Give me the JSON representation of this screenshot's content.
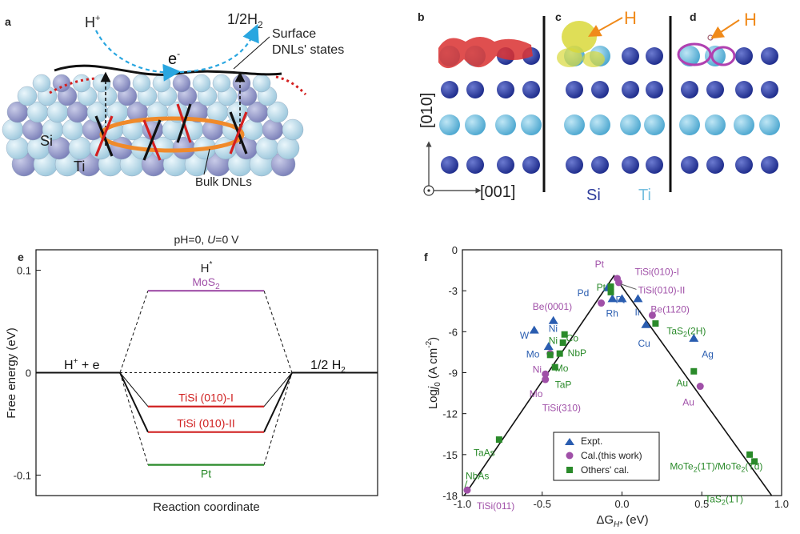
{
  "panel_labels": {
    "a": "a",
    "b": "b",
    "c": "c",
    "d": "d",
    "e": "e",
    "f": "f"
  },
  "panel_a": {
    "h_plus": "H",
    "h_plus_sup": "+",
    "h2_prefix": "1/2H",
    "h2_sub": "2",
    "electron": "e",
    "electron_sup": "-",
    "surface_line1": "Surface",
    "surface_line2": "DNLs' states",
    "si": "Si",
    "ti": "Ti",
    "bulk": "Bulk DNLs"
  },
  "panel_bcd": {
    "axis_vertical": "[010]",
    "axis_horizontal": "[001]",
    "h_label_c": "H",
    "h_label_d": "H",
    "legend_si": "Si",
    "legend_ti": "Ti",
    "colors": {
      "si": "#2b3a9a",
      "ti": "#79c0e0",
      "charge_red": "#d93030",
      "charge_yellow": "#d9d83a",
      "charge_magenta": "#b040b0",
      "arrow": "#f08a1a"
    }
  },
  "panel_e": {
    "title_pre": "pH=0, ",
    "title_u": "U",
    "title_post": "=0 V",
    "h_star": "H",
    "h_star_sup": "*",
    "left_state": "H",
    "left_state_sup": "+",
    "left_state_tail": " + e",
    "right_state_pre": "1/2 H",
    "right_state_sub": "2",
    "ylabel": "Free energy (eV)",
    "xlabel": "Reaction coordinate",
    "yticks": [
      "0.1",
      "0",
      "-0.1"
    ],
    "ylim": [
      -0.12,
      0.12
    ],
    "levels": [
      {
        "name_pre": "MoS",
        "name_sub": "2",
        "name_post": "",
        "value": 0.08,
        "color": "#a050a8"
      },
      {
        "name_pre": "TiSi (010)-I",
        "name_sub": "",
        "name_post": "",
        "value": -0.033,
        "color": "#d02020"
      },
      {
        "name_pre": "TiSi (010)-II",
        "name_sub": "",
        "name_post": "",
        "value": -0.058,
        "color": "#d02020"
      },
      {
        "name_pre": "Pt",
        "name_sub": "",
        "name_post": "",
        "value": -0.09,
        "color": "#2a8a2a"
      }
    ]
  },
  "chart_data": {
    "type": "scatter",
    "xlabel_pre": "ΔG",
    "xlabel_sub": "H*",
    "xlabel_post": " (eV)",
    "ylabel_pre": "Log",
    "ylabel_i": "j",
    "ylabel_sub": "0",
    "ylabel_post": " (A cm",
    "ylabel_sup": "-2",
    "ylabel_end": ")",
    "xlim": [
      -1.0,
      1.0
    ],
    "ylim": [
      -18,
      0
    ],
    "xticks": [
      {
        "v": -1.0,
        "t": "-1.0"
      },
      {
        "v": -0.5,
        "t": "-0.5"
      },
      {
        "v": 0.0,
        "t": "0.0"
      },
      {
        "v": 0.5,
        "t": "0.5"
      },
      {
        "v": 1.0,
        "t": "1.0"
      }
    ],
    "yticks": [
      {
        "v": 0,
        "t": "0"
      },
      {
        "v": -3,
        "t": "-3"
      },
      {
        "v": -6,
        "t": "-6"
      },
      {
        "v": -9,
        "t": "-9"
      },
      {
        "v": -12,
        "t": "-12"
      },
      {
        "v": -15,
        "t": "-15"
      },
      {
        "v": -18,
        "t": "-18"
      }
    ],
    "volcano": [
      [
        -1.0,
        -18.2
      ],
      [
        -0.05,
        -1.9
      ],
      [
        0.95,
        -18.2
      ]
    ],
    "legend": [
      "Expt.",
      "Cal.(this work)",
      "Others' cal."
    ],
    "series": [
      {
        "name": "Expt.",
        "color": "#2a5db0",
        "marker": "triangle",
        "points": [
          [
            -0.55,
            -5.9
          ],
          [
            -0.43,
            -5.2
          ],
          [
            -0.46,
            -7.1
          ],
          [
            -0.09,
            -2.8
          ],
          [
            -0.06,
            -3.6
          ],
          [
            0.0,
            -3.6
          ],
          [
            0.1,
            -3.6
          ],
          [
            0.15,
            -5.5
          ],
          [
            0.45,
            -6.5
          ]
        ]
      },
      {
        "name": "Cal.(this work)",
        "color": "#a050a8",
        "marker": "circle",
        "points": [
          [
            -0.03,
            -2.1
          ],
          [
            -0.02,
            -2.4
          ],
          [
            -0.13,
            -3.9
          ],
          [
            -0.45,
            -7.6
          ],
          [
            -0.48,
            -9.1
          ],
          [
            -0.48,
            -9.5
          ],
          [
            -0.97,
            -17.6
          ],
          [
            0.19,
            -4.8
          ],
          [
            0.49,
            -10.0
          ]
        ]
      },
      {
        "name": "Others' cal.",
        "color": "#2a8a2a",
        "marker": "square",
        "points": [
          [
            -0.07,
            -2.7
          ],
          [
            -0.07,
            -3.1
          ],
          [
            -0.36,
            -6.2
          ],
          [
            -0.37,
            -6.8
          ],
          [
            -0.39,
            -7.6
          ],
          [
            -0.45,
            -7.7
          ],
          [
            -0.42,
            -8.6
          ],
          [
            -0.77,
            -13.9
          ],
          [
            0.21,
            -5.4
          ],
          [
            0.45,
            -8.9
          ],
          [
            0.8,
            -15.0
          ],
          [
            0.83,
            -15.5
          ]
        ]
      }
    ],
    "labels": [
      {
        "text": "Pt",
        "x": -0.17,
        "y": -1.3,
        "color": "#a050a8",
        "anchor": "start"
      },
      {
        "text": "TiSi(010)-I",
        "x": 0.08,
        "y": -1.85,
        "color": "#a050a8",
        "anchor": "start"
      },
      {
        "text": "TiSi(010)-II",
        "x": 0.1,
        "y": -3.2,
        "color": "#a050a8",
        "anchor": "start"
      },
      {
        "text": "Pd",
        "x": -0.28,
        "y": -3.4,
        "color": "#2a5db0",
        "anchor": "start"
      },
      {
        "text": "Pt",
        "x": -0.16,
        "y": -3.0,
        "color": "#2a8a2a",
        "anchor": "start"
      },
      {
        "text": "Pt",
        "x": -0.04,
        "y": -3.9,
        "color": "#2a5db0",
        "anchor": "start"
      },
      {
        "text": "Rh",
        "x": -0.1,
        "y": -4.9,
        "color": "#2a5db0",
        "anchor": "start"
      },
      {
        "text": "Ir",
        "x": 0.08,
        "y": -4.8,
        "color": "#2a5db0",
        "anchor": "start"
      },
      {
        "text": "Be(0001)",
        "x": -0.56,
        "y": -4.4,
        "color": "#a050a8",
        "anchor": "start"
      },
      {
        "text": "Ni",
        "x": -0.46,
        "y": -6.0,
        "color": "#2a5db0",
        "anchor": "start"
      },
      {
        "text": "Ni",
        "x": -0.46,
        "y": -6.9,
        "color": "#2a8a2a",
        "anchor": "start"
      },
      {
        "text": "Co",
        "x": -0.35,
        "y": -6.7,
        "color": "#2a8a2a",
        "anchor": "start"
      },
      {
        "text": "W",
        "x": -0.64,
        "y": -6.5,
        "color": "#2a5db0",
        "anchor": "start"
      },
      {
        "text": "Mo",
        "x": -0.6,
        "y": -7.9,
        "color": "#2a5db0",
        "anchor": "start"
      },
      {
        "text": "NbP",
        "x": -0.34,
        "y": -7.8,
        "color": "#2a8a2a",
        "anchor": "start"
      },
      {
        "text": "Ni",
        "x": -0.56,
        "y": -9.0,
        "color": "#a050a8",
        "anchor": "start"
      },
      {
        "text": "Mo",
        "x": -0.42,
        "y": -8.9,
        "color": "#2a8a2a",
        "anchor": "start"
      },
      {
        "text": "TaP",
        "x": -0.42,
        "y": -10.1,
        "color": "#2a8a2a",
        "anchor": "start"
      },
      {
        "text": "Mo",
        "x": -0.58,
        "y": -10.8,
        "color": "#a050a8",
        "anchor": "start"
      },
      {
        "text": "TiSi(310)",
        "x": -0.5,
        "y": -11.8,
        "color": "#a050a8",
        "anchor": "start",
        "overline": "3"
      },
      {
        "text": "Be(1120)",
        "x": 0.18,
        "y": -4.6,
        "color": "#a050a8",
        "anchor": "start",
        "overline": "2"
      },
      {
        "text": "TaS",
        "sub": "2",
        "tail": "(2H)",
        "x": 0.28,
        "y": -6.2,
        "color": "#2a8a2a",
        "anchor": "start"
      },
      {
        "text": "Cu",
        "x": 0.1,
        "y": -7.1,
        "color": "#2a5db0",
        "anchor": "start"
      },
      {
        "text": "Ag",
        "x": 0.5,
        "y": -7.9,
        "color": "#2a5db0",
        "anchor": "start"
      },
      {
        "text": "Au",
        "x": 0.34,
        "y": -10.0,
        "color": "#2a8a2a",
        "anchor": "start"
      },
      {
        "text": "Au",
        "x": 0.38,
        "y": -11.4,
        "color": "#a050a8",
        "anchor": "start"
      },
      {
        "text": "TaAs",
        "x": -0.93,
        "y": -15.1,
        "color": "#2a8a2a",
        "anchor": "start"
      },
      {
        "text": "NbAs",
        "x": -0.98,
        "y": -16.8,
        "color": "#2a8a2a",
        "anchor": "start"
      },
      {
        "text": "TiSi(011)",
        "x": -0.91,
        "y": -19.0,
        "color": "#a050a8",
        "anchor": "start",
        "overline": "1"
      },
      {
        "text": "MoTe",
        "sub": "2",
        "tail": "(1T)/MoTe",
        "sub2": "2",
        "tail2": "(Td)",
        "x": 0.3,
        "y": -16.1,
        "color": "#2a8a2a",
        "anchor": "start"
      },
      {
        "text": "TaS",
        "sub": "2",
        "tail": "(1T)",
        "x": 0.52,
        "y": -18.5,
        "color": "#2a8a2a",
        "anchor": "start"
      }
    ]
  }
}
